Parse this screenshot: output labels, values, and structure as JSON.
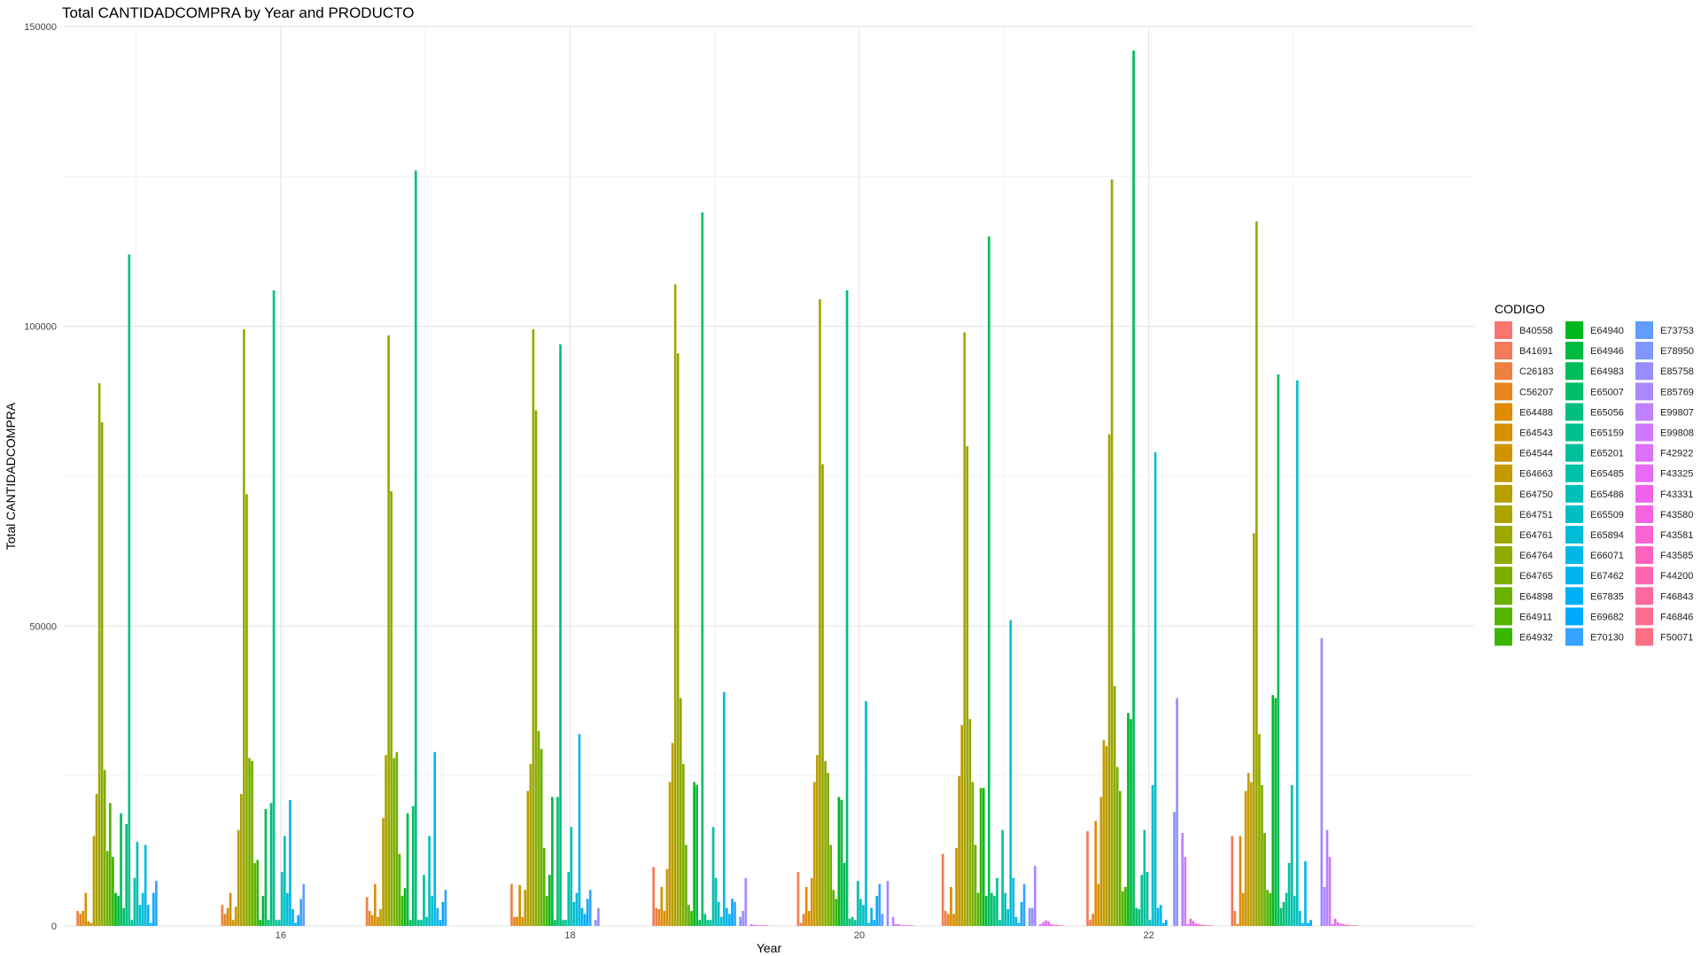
{
  "chart_data": {
    "type": "bar",
    "title": "Total CANTIDADCOMPRA by Year and PRODUCTO",
    "xlabel": "Year",
    "ylabel": "Total CANTIDADCOMPRA",
    "xlim": [
      14.5,
      24.25
    ],
    "ylim": [
      0,
      150000
    ],
    "x_ticks": [
      16,
      18,
      20,
      22
    ],
    "y_ticks": [
      0,
      50000,
      100000,
      150000
    ],
    "grid": true,
    "legend_title": "CODIGO",
    "legend_position": "right",
    "years": [
      15,
      16,
      17,
      18,
      19,
      20,
      21,
      22,
      23
    ],
    "series": [
      {
        "name": "B40558",
        "color": "#F8766D",
        "values": [
          0,
          0,
          0,
          0,
          0,
          0,
          0,
          0,
          0
        ]
      },
      {
        "name": "B41691",
        "color": "#F37B59",
        "values": [
          0,
          0,
          0,
          0,
          9800,
          9000,
          12000,
          15800,
          15000
        ]
      },
      {
        "name": "C26183",
        "color": "#ED8141",
        "values": [
          2500,
          3500,
          4800,
          7000,
          3000,
          500,
          2500,
          1000,
          2500
        ]
      },
      {
        "name": "C56207",
        "color": "#E7851E",
        "values": [
          2000,
          2000,
          2500,
          1500,
          2800,
          2000,
          2000,
          2000,
          300
        ]
      },
      {
        "name": "E64488",
        "color": "#E08B00",
        "values": [
          2500,
          3000,
          1800,
          1500,
          6500,
          6500,
          6500,
          17500,
          15000
        ]
      },
      {
        "name": "E64543",
        "color": "#D89000",
        "values": [
          5500,
          5500,
          7000,
          6800,
          2500,
          2500,
          2000,
          7000,
          5500
        ]
      },
      {
        "name": "E64544",
        "color": "#CF9400",
        "values": [
          800,
          1000,
          1500,
          1500,
          9500,
          8000,
          13000,
          21500,
          22500
        ]
      },
      {
        "name": "E64663",
        "color": "#C49A00",
        "values": [
          500,
          3200,
          2800,
          6000,
          24000,
          24000,
          25000,
          31000,
          25500
        ]
      },
      {
        "name": "E64750",
        "color": "#B79F00",
        "values": [
          15000,
          16000,
          18000,
          22500,
          30500,
          28500,
          33500,
          30000,
          24000
        ]
      },
      {
        "name": "E64751",
        "color": "#AAA300",
        "values": [
          22000,
          22000,
          28500,
          27000,
          107000,
          104500,
          99000,
          82000,
          65500
        ]
      },
      {
        "name": "E64761",
        "color": "#9CA700",
        "values": [
          90500,
          99500,
          98500,
          99500,
          95500,
          77000,
          80000,
          124500,
          117500
        ]
      },
      {
        "name": "E64764",
        "color": "#8DAB00",
        "values": [
          84000,
          72000,
          72500,
          86000,
          38000,
          27500,
          34500,
          40000,
          32000
        ]
      },
      {
        "name": "E64765",
        "color": "#7CAE00",
        "values": [
          26000,
          28000,
          28000,
          32500,
          27000,
          25500,
          24000,
          26500,
          23500
        ]
      },
      {
        "name": "E64898",
        "color": "#68B100",
        "values": [
          12500,
          27500,
          29000,
          29500,
          13500,
          13500,
          13500,
          22500,
          15500
        ]
      },
      {
        "name": "E64911",
        "color": "#53B400",
        "values": [
          20500,
          10500,
          12000,
          13000,
          3500,
          6000,
          5500,
          5800,
          6000
        ]
      },
      {
        "name": "E64932",
        "color": "#39B600",
        "values": [
          11500,
          11000,
          5000,
          5000,
          2500,
          4500,
          23000,
          6500,
          5500
        ]
      },
      {
        "name": "E64940",
        "color": "#00B81E",
        "values": [
          5500,
          1000,
          6300,
          8500,
          24000,
          21500,
          23000,
          35500,
          38500
        ]
      },
      {
        "name": "E64946",
        "color": "#00BA42",
        "values": [
          5000,
          5000,
          18800,
          21500,
          23500,
          21000,
          5000,
          34500,
          38000
        ]
      },
      {
        "name": "E64983",
        "color": "#00BC59",
        "values": [
          18800,
          19500,
          1000,
          1000,
          1000,
          10500,
          115000,
          146000,
          92000
        ]
      },
      {
        "name": "E65007",
        "color": "#00BE6C",
        "values": [
          3000,
          1000,
          20000,
          21500,
          119000,
          106000,
          5500,
          3000,
          3000
        ]
      },
      {
        "name": "E65056",
        "color": "#00BF7D",
        "values": [
          17000,
          20500,
          126000,
          97000,
          2000,
          1200,
          5000,
          2800,
          4000
        ]
      },
      {
        "name": "E65159",
        "color": "#00C08D",
        "values": [
          112000,
          106000,
          1000,
          1000,
          1000,
          1500,
          8000,
          8500,
          5500
        ]
      },
      {
        "name": "E65201",
        "color": "#00C19C",
        "values": [
          1000,
          1000,
          1000,
          1000,
          1000,
          1000,
          1000,
          16000,
          10500
        ]
      },
      {
        "name": "E65485",
        "color": "#00C1AA",
        "values": [
          8000,
          1000,
          8500,
          9000,
          16500,
          7500,
          16000,
          9000,
          23500
        ]
      },
      {
        "name": "E65486",
        "color": "#00C0B8",
        "values": [
          14000,
          9000,
          1500,
          16500,
          8000,
          4500,
          5500,
          1000,
          5000
        ]
      },
      {
        "name": "E65509",
        "color": "#00BFC4",
        "values": [
          3500,
          15000,
          15000,
          4000,
          4000,
          3500,
          2800,
          23500,
          91000
        ]
      },
      {
        "name": "E65894",
        "color": "#00BCD8",
        "values": [
          5500,
          5500,
          5000,
          5500,
          1500,
          37500,
          51000,
          79000,
          2500
        ]
      },
      {
        "name": "E66071",
        "color": "#00B8E7",
        "values": [
          13500,
          21000,
          29000,
          32000,
          39000,
          500,
          8000,
          3000,
          500
        ]
      },
      {
        "name": "E67462",
        "color": "#00B4F0",
        "values": [
          3500,
          2800,
          3000,
          3000,
          3000,
          3000,
          1500,
          3500,
          10800
        ]
      },
      {
        "name": "E67835",
        "color": "#00B0F6",
        "values": [
          500,
          500,
          1000,
          2000,
          2000,
          1000,
          500,
          500,
          500
        ]
      },
      {
        "name": "E69682",
        "color": "#00A9FF",
        "values": [
          5500,
          1800,
          4000,
          4500,
          4500,
          5000,
          4000,
          1000,
          1000
        ]
      },
      {
        "name": "E70130",
        "color": "#35A2FF",
        "values": [
          7500,
          4500,
          6000,
          6000,
          4000,
          7000,
          7000,
          0,
          0
        ]
      },
      {
        "name": "E73753",
        "color": "#619CFF",
        "values": [
          0,
          7000,
          0,
          0,
          0,
          2000,
          0,
          0,
          0
        ]
      },
      {
        "name": "E78950",
        "color": "#7F96FF",
        "values": [
          0,
          0,
          0,
          1000,
          1500,
          0,
          3000,
          19000,
          0
        ]
      },
      {
        "name": "E85758",
        "color": "#988DFF",
        "values": [
          0,
          0,
          0,
          3000,
          2500,
          7500,
          3000,
          38000,
          48000
        ]
      },
      {
        "name": "E85769",
        "color": "#AC88FF",
        "values": [
          0,
          0,
          0,
          0,
          8000,
          0,
          10000,
          0,
          6500
        ]
      },
      {
        "name": "E99807",
        "color": "#BF81FF",
        "values": [
          0,
          0,
          0,
          0,
          0,
          1500,
          0,
          15500,
          16000
        ]
      },
      {
        "name": "E99808",
        "color": "#CF78FF",
        "values": [
          0,
          0,
          0,
          0,
          300,
          300,
          300,
          11500,
          11500
        ]
      },
      {
        "name": "F42922",
        "color": "#DC71FA",
        "values": [
          0,
          0,
          0,
          0,
          200,
          300,
          600,
          300,
          300
        ]
      },
      {
        "name": "F43325",
        "color": "#E76BF3",
        "values": [
          0,
          0,
          0,
          0,
          150,
          150,
          900,
          1200,
          1200
        ]
      },
      {
        "name": "F43331",
        "color": "#F062EA",
        "values": [
          0,
          0,
          0,
          0,
          100,
          150,
          700,
          800,
          600
        ]
      },
      {
        "name": "F43580",
        "color": "#F763E0",
        "values": [
          0,
          0,
          0,
          0,
          100,
          100,
          300,
          400,
          400
        ]
      },
      {
        "name": "F43581",
        "color": "#FC63D4",
        "values": [
          0,
          0,
          0,
          0,
          100,
          100,
          200,
          300,
          300
        ]
      },
      {
        "name": "F43585",
        "color": "#FF62BC",
        "values": [
          0,
          0,
          0,
          0,
          100,
          100,
          200,
          200,
          200
        ]
      },
      {
        "name": "F44200",
        "color": "#FF65AE",
        "values": [
          0,
          0,
          0,
          0,
          0,
          0,
          100,
          200,
          200
        ]
      },
      {
        "name": "F46843",
        "color": "#FF689F",
        "values": [
          0,
          0,
          0,
          0,
          0,
          0,
          100,
          100,
          100
        ]
      },
      {
        "name": "F46846",
        "color": "#FF6C91",
        "values": [
          0,
          0,
          0,
          0,
          0,
          0,
          0,
          100,
          100
        ]
      },
      {
        "name": "F50071",
        "color": "#FD6F84",
        "values": [
          0,
          0,
          0,
          0,
          0,
          0,
          0,
          100,
          100
        ]
      }
    ]
  }
}
